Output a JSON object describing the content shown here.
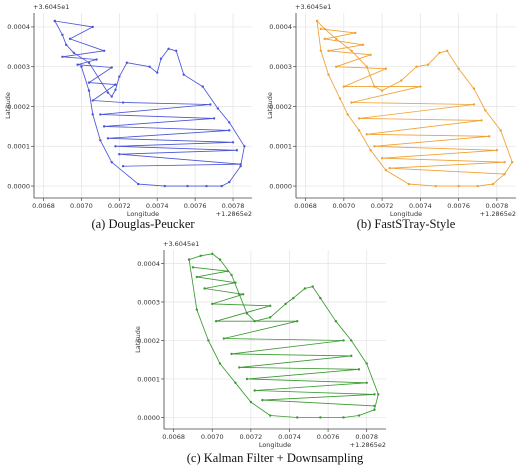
{
  "chart_data": [
    {
      "type": "line",
      "caption": "(a) Douglas-Peucker",
      "color": "#4a55d8",
      "xlabel": "Longitude",
      "ylabel": "Latitude",
      "x_offset_label": "+1.2865e2",
      "y_offset_label": "+3.6045e1",
      "xlim": [
        0.00675,
        0.0079
      ],
      "ylim": [
        -3e-05,
        0.000435
      ],
      "xticks": [
        0.0068,
        0.007,
        0.0072,
        0.0074,
        0.0076,
        0.0078
      ],
      "xtick_labels": [
        "0.0068",
        "0.0070",
        "0.0072",
        "0.0074",
        "0.0076",
        "0.0078"
      ],
      "yticks": [
        0.0,
        0.0001,
        0.0002,
        0.0003,
        0.0004
      ],
      "ytick_labels": [
        "0.0000",
        "0.0001",
        "0.0002",
        "0.0003",
        "0.0004"
      ],
      "grid": true,
      "series": [
        {
          "x": [
            0.00686,
            0.0069,
            0.00692,
            0.00696,
            0.00704,
            0.00714,
            0.00716,
            0.00718,
            0.0072,
            0.00724,
            0.00736,
            0.0074,
            0.00742,
            0.00746,
            0.0075,
            0.00754,
            0.00764,
            0.00772,
            0.00778,
            0.00786,
            0.00784,
            0.00778,
            0.00774,
            0.00766,
            0.00756,
            0.00744,
            0.0073,
            0.00716,
            0.0071,
            0.00706,
            0.00704,
            0.007
          ],
          "y": [
            0.000415,
            0.00038,
            0.000355,
            0.000335,
            0.00031,
            0.000235,
            0.000225,
            0.000242,
            0.000275,
            0.00031,
            0.0003,
            0.000285,
            0.00032,
            0.000345,
            0.00034,
            0.00028,
            0.00025,
            0.000195,
            0.00016,
            0.0001,
            5e-05,
            1e-05,
            0.0,
            0.0,
            0.0,
            0.0,
            5e-06,
            6e-05,
            0.000115,
            0.00018,
            0.00024,
            0.0003
          ]
        },
        {
          "x": [
            0.00686,
            0.00706,
            0.00694,
            0.00712,
            0.0069,
            0.00708,
            0.00698,
            0.00716,
            0.00704,
            0.00718,
            0.00706,
            0.00722,
            0.00768,
            0.0071,
            0.0077,
            0.00712,
            0.00778,
            0.00714,
            0.0078,
            0.00718,
            0.00782,
            0.0072,
            0.00784,
            0.00722
          ],
          "y": [
            0.000415,
            0.0004,
            0.00037,
            0.00034,
            0.000325,
            0.000318,
            0.000305,
            0.000298,
            0.00026,
            0.000255,
            0.000215,
            0.00021,
            0.000205,
            0.00018,
            0.00017,
            0.00015,
            0.00014,
            0.00012,
            0.00011,
            0.0001,
            9e-05,
            8e-05,
            5.5e-05,
            5e-05
          ]
        }
      ]
    },
    {
      "type": "line",
      "caption": "(b) FastSTray-Style",
      "color": "#f0a030",
      "xlabel": "Longitude",
      "ylabel": "Latitude",
      "x_offset_label": "+1.2865e2",
      "y_offset_label": "+3.6045e1",
      "xlim": [
        0.00675,
        0.0079
      ],
      "ylim": [
        -3e-05,
        0.000435
      ],
      "xticks": [
        0.0068,
        0.007,
        0.0072,
        0.0074,
        0.0076,
        0.0078
      ],
      "xtick_labels": [
        "0.0068",
        "0.0070",
        "0.0072",
        "0.0074",
        "0.0076",
        "0.0078"
      ],
      "yticks": [
        0.0,
        0.0001,
        0.0002,
        0.0003,
        0.0004
      ],
      "ytick_labels": [
        "0.0000",
        "0.0001",
        "0.0002",
        "0.0003",
        "0.0004"
      ],
      "grid": true,
      "series": [
        {
          "x": [
            0.00686,
            0.0069,
            0.00696,
            0.00704,
            0.00712,
            0.00716,
            0.0072,
            0.0073,
            0.00738,
            0.00744,
            0.0075,
            0.00754,
            0.0076,
            0.00768,
            0.00774,
            0.00782,
            0.00788,
            0.00784,
            0.00778,
            0.0077,
            0.0076,
            0.00748,
            0.00734,
            0.00722,
            0.00714,
            0.00708,
            0.00702,
            0.00698,
            0.00692,
            0.00688,
            0.00686
          ],
          "y": [
            0.000415,
            0.000395,
            0.00037,
            0.00034,
            0.0003,
            0.00025,
            0.00024,
            0.000265,
            0.0003,
            0.000305,
            0.000335,
            0.00034,
            0.000295,
            0.000245,
            0.00019,
            0.00014,
            6e-05,
            3e-05,
            5e-06,
            0.0,
            0.0,
            0.0,
            5e-06,
            4e-05,
            9e-05,
            0.00014,
            0.00018,
            0.00022,
            0.00028,
            0.00034,
            0.000415
          ]
        },
        {
          "x": [
            0.00688,
            0.00706,
            0.0069,
            0.0071,
            0.00692,
            0.00714,
            0.00696,
            0.00722,
            0.007,
            0.0074,
            0.00704,
            0.00768,
            0.00708,
            0.00772,
            0.00712,
            0.00776,
            0.00716,
            0.0078,
            0.0072,
            0.00784,
            0.00724,
            0.00784
          ],
          "y": [
            0.000395,
            0.000385,
            0.00037,
            0.000355,
            0.00034,
            0.00033,
            0.0003,
            0.000295,
            0.00025,
            0.00025,
            0.00021,
            0.000205,
            0.00017,
            0.000165,
            0.00013,
            0.000125,
            0.0001,
            9e-05,
            7e-05,
            6e-05,
            4.5e-05,
            3e-05
          ]
        }
      ]
    },
    {
      "type": "line",
      "caption": "(c) Kalman Filter + Downsampling",
      "color": "#3a9a30",
      "xlabel": "Longitude",
      "ylabel": "Latitude",
      "x_offset_label": "+1.2865e2",
      "y_offset_label": "+3.6045e1",
      "xlim": [
        0.00675,
        0.0079
      ],
      "ylim": [
        -3e-05,
        0.000435
      ],
      "xticks": [
        0.0068,
        0.007,
        0.0072,
        0.0074,
        0.0076,
        0.0078
      ],
      "xtick_labels": [
        "0.0068",
        "0.0070",
        "0.0072",
        "0.0074",
        "0.0076",
        "0.0078"
      ],
      "yticks": [
        0.0,
        0.0001,
        0.0002,
        0.0003,
        0.0004
      ],
      "ytick_labels": [
        "0.0000",
        "0.0001",
        "0.0002",
        "0.0003",
        "0.0004"
      ],
      "grid": true,
      "series": [
        {
          "x": [
            0.00688,
            0.00694,
            0.007,
            0.00704,
            0.0071,
            0.00714,
            0.00718,
            0.00722,
            0.0073,
            0.00738,
            0.00742,
            0.00748,
            0.00752,
            0.00756,
            0.00764,
            0.00772,
            0.0078,
            0.00786,
            0.00784,
            0.00776,
            0.00768,
            0.00756,
            0.00744,
            0.0073,
            0.0072,
            0.00712,
            0.00704,
            0.00698,
            0.00692,
            0.00688
          ],
          "y": [
            0.00041,
            0.00042,
            0.000425,
            0.00041,
            0.00037,
            0.00032,
            0.00027,
            0.00025,
            0.00026,
            0.000295,
            0.00031,
            0.000335,
            0.00034,
            0.00031,
            0.00025,
            0.0002,
            0.00014,
            6e-05,
            2e-05,
            5e-06,
            0.0,
            0.0,
            0.0,
            5e-06,
            4e-05,
            9e-05,
            0.00014,
            0.0002,
            0.00028,
            0.00041
          ]
        },
        {
          "x": [
            0.0069,
            0.00708,
            0.00692,
            0.00712,
            0.00696,
            0.00716,
            0.007,
            0.0073,
            0.00702,
            0.00744,
            0.00706,
            0.00768,
            0.0071,
            0.00772,
            0.00714,
            0.00776,
            0.00718,
            0.0078,
            0.00722,
            0.00784,
            0.00726,
            0.00784
          ],
          "y": [
            0.00039,
            0.00038,
            0.000365,
            0.00035,
            0.000335,
            0.00032,
            0.000295,
            0.00029,
            0.00025,
            0.00025,
            0.000205,
            0.0002,
            0.000165,
            0.00016,
            0.00013,
            0.000125,
            0.0001,
            9e-05,
            7e-05,
            6e-05,
            4.5e-05,
            3e-05
          ]
        }
      ]
    }
  ]
}
